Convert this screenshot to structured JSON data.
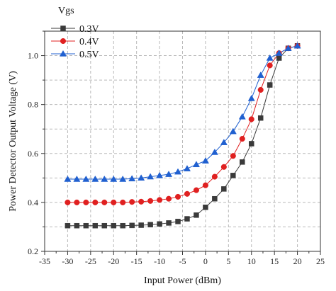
{
  "chart_data": {
    "type": "line",
    "xlabel": "Input Power (dBm)",
    "ylabel": "Power Detector Output Voltage (V)",
    "xlim": [
      -35,
      25
    ],
    "ylim": [
      0.2,
      1.1
    ],
    "xticks": [
      -35,
      -30,
      -25,
      -20,
      -15,
      -10,
      -5,
      0,
      5,
      10,
      15,
      20,
      25
    ],
    "yticks": [
      0.2,
      0.4,
      0.6,
      0.8,
      1.0
    ],
    "xtick_labels": [
      "-35",
      "-30",
      "-25",
      "-20",
      "-15",
      "-10",
      "-5",
      "0",
      "5",
      "10",
      "15",
      "20",
      "25"
    ],
    "ytick_labels": [
      "0.2",
      "0.4",
      "0.6",
      "0.8",
      "1.0"
    ],
    "grid": true,
    "legend_title": "Vgs",
    "legend_position": "top-left",
    "x": [
      -30,
      -28,
      -26,
      -24,
      -22,
      -20,
      -18,
      -16,
      -14,
      -12,
      -10,
      -8,
      -6,
      -4,
      -2,
      0,
      2,
      4,
      6,
      8,
      10,
      12,
      14,
      16,
      18,
      20
    ],
    "series": [
      {
        "name": "0.3V",
        "color": "#3a3a3a",
        "marker": "square",
        "values": [
          0.305,
          0.305,
          0.305,
          0.305,
          0.305,
          0.305,
          0.305,
          0.306,
          0.307,
          0.309,
          0.312,
          0.316,
          0.322,
          0.333,
          0.348,
          0.38,
          0.415,
          0.455,
          0.51,
          0.565,
          0.64,
          0.745,
          0.88,
          0.99,
          1.03,
          1.04
        ]
      },
      {
        "name": "0.4V",
        "color": "#e02020",
        "marker": "circle",
        "values": [
          0.4,
          0.4,
          0.4,
          0.4,
          0.4,
          0.4,
          0.4,
          0.402,
          0.403,
          0.406,
          0.41,
          0.415,
          0.423,
          0.435,
          0.45,
          0.47,
          0.505,
          0.545,
          0.59,
          0.66,
          0.74,
          0.86,
          0.96,
          1.01,
          1.03,
          1.04
        ]
      },
      {
        "name": "0.5V",
        "color": "#2060d0",
        "marker": "triangle",
        "values": [
          0.495,
          0.495,
          0.495,
          0.495,
          0.495,
          0.495,
          0.495,
          0.497,
          0.5,
          0.505,
          0.51,
          0.515,
          0.525,
          0.538,
          0.555,
          0.57,
          0.605,
          0.645,
          0.69,
          0.75,
          0.825,
          0.92,
          0.99,
          1.01,
          1.03,
          1.04
        ]
      }
    ]
  }
}
